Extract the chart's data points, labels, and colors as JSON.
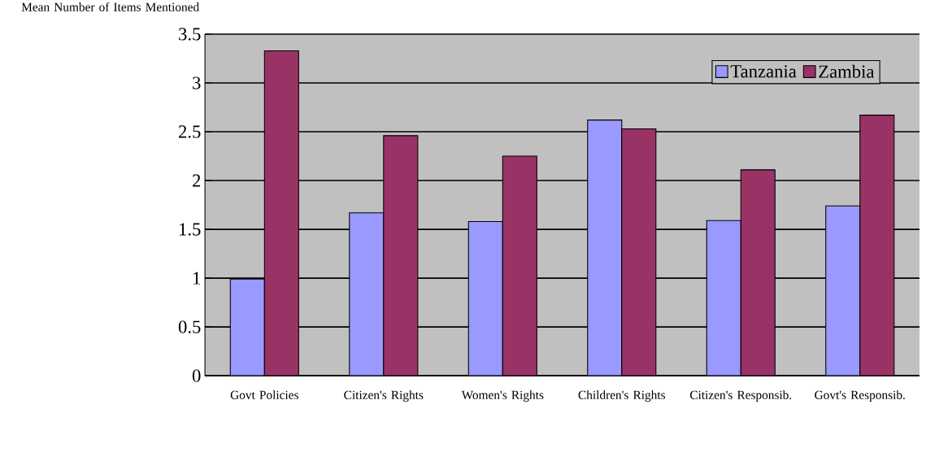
{
  "chart_data": {
    "type": "bar",
    "ylabel": "Mean Number of Items Mentioned",
    "categories": [
      "Govt Policies",
      "Citizen's Rights",
      "Women's Rights",
      "Children's Rights",
      "Citizen's Responsib.",
      "Govt's Responsib."
    ],
    "series": [
      {
        "name": "Tanzania",
        "color": "#9999ff",
        "values": [
          0.99,
          1.67,
          1.58,
          2.62,
          1.59,
          1.74
        ]
      },
      {
        "name": "Zambia",
        "color": "#993366",
        "values": [
          3.33,
          2.46,
          2.25,
          2.53,
          2.11,
          2.67
        ]
      }
    ],
    "ylim": [
      0,
      3.5
    ],
    "yticks": [
      0,
      0.5,
      1,
      1.5,
      2,
      2.5,
      3,
      3.5
    ],
    "grid": "y",
    "legend": "top right"
  }
}
